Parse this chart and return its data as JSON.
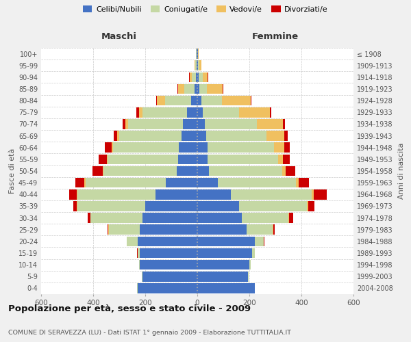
{
  "age_groups": [
    "0-4",
    "5-9",
    "10-14",
    "15-19",
    "20-24",
    "25-29",
    "30-34",
    "35-39",
    "40-44",
    "45-49",
    "50-54",
    "55-59",
    "60-64",
    "65-69",
    "70-74",
    "75-79",
    "80-84",
    "85-89",
    "90-94",
    "95-99",
    "100+"
  ],
  "birth_years": [
    "2004-2008",
    "1999-2003",
    "1994-1998",
    "1989-1993",
    "1984-1988",
    "1979-1983",
    "1974-1978",
    "1969-1973",
    "1964-1968",
    "1959-1963",
    "1954-1958",
    "1949-1953",
    "1944-1948",
    "1939-1943",
    "1934-1938",
    "1929-1933",
    "1924-1928",
    "1919-1923",
    "1914-1918",
    "1909-1913",
    "≤ 1908"
  ],
  "colors": {
    "celibi": "#4472c4",
    "coniugati": "#c5d8a4",
    "vedovi": "#f0c060",
    "divorziati": "#cc0000"
  },
  "maschi": {
    "celibi": [
      230,
      210,
      220,
      220,
      230,
      220,
      210,
      200,
      160,
      120,
      80,
      75,
      70,
      60,
      55,
      40,
      25,
      10,
      5,
      3,
      2
    ],
    "coniugati": [
      2,
      2,
      5,
      10,
      40,
      120,
      200,
      260,
      300,
      310,
      280,
      270,
      255,
      240,
      210,
      170,
      100,
      40,
      15,
      5,
      2
    ],
    "vedovi": [
      0,
      0,
      0,
      0,
      0,
      1,
      1,
      2,
      2,
      3,
      3,
      3,
      5,
      8,
      12,
      15,
      30,
      25,
      10,
      3,
      1
    ],
    "divorziati": [
      0,
      0,
      0,
      1,
      2,
      5,
      10,
      15,
      30,
      35,
      40,
      30,
      25,
      12,
      10,
      8,
      3,
      2,
      1,
      0,
      0
    ]
  },
  "femmine": {
    "celibi": [
      220,
      195,
      200,
      210,
      220,
      190,
      170,
      160,
      130,
      80,
      45,
      40,
      40,
      35,
      30,
      20,
      15,
      8,
      5,
      3,
      2
    ],
    "coniugati": [
      2,
      2,
      5,
      10,
      35,
      100,
      180,
      260,
      310,
      300,
      280,
      270,
      255,
      230,
      200,
      140,
      80,
      30,
      15,
      5,
      1
    ],
    "vedovi": [
      0,
      0,
      0,
      0,
      1,
      2,
      3,
      5,
      8,
      10,
      15,
      20,
      40,
      70,
      100,
      120,
      110,
      60,
      20,
      8,
      2
    ],
    "divorziati": [
      0,
      0,
      0,
      1,
      2,
      5,
      15,
      25,
      50,
      40,
      35,
      25,
      20,
      12,
      8,
      5,
      3,
      2,
      1,
      0,
      0
    ]
  },
  "title": "Popolazione per età, sesso e stato civile - 2009",
  "subtitle": "COMUNE DI SERAVEZZA (LU) - Dati ISTAT 1° gennaio 2009 - Elaborazione TUTTITALIA.IT",
  "label_maschi": "Maschi",
  "label_femmine": "Femmine",
  "ylabel_left": "Fasce di età",
  "ylabel_right": "Anni di nascita",
  "xlim": 600,
  "legend_labels": [
    "Celibi/Nubili",
    "Coniugati/e",
    "Vedovi/e",
    "Divorziati/e"
  ],
  "bg_color": "#f0f0f0",
  "plot_bg": "#ffffff"
}
